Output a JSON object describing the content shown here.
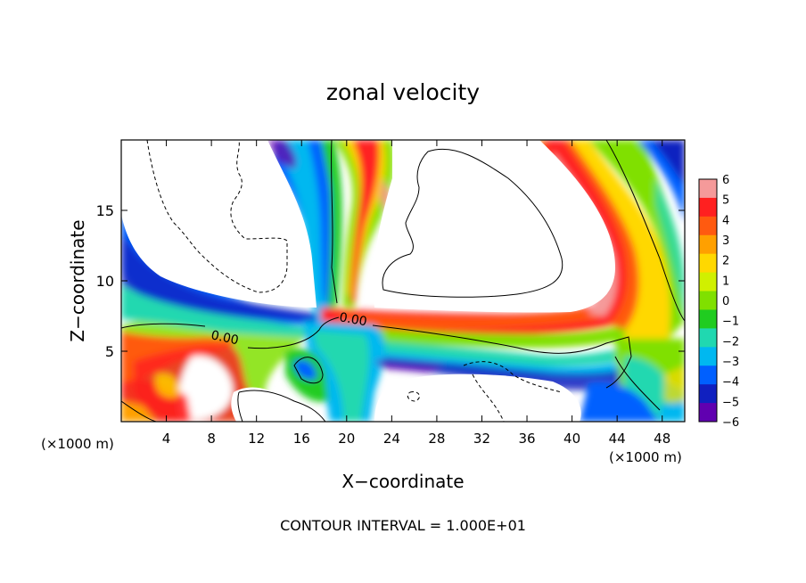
{
  "chart_data": {
    "type": "heatmap",
    "title": "zonal velocity",
    "xlabel": "X−coordinate",
    "ylabel": "Z−coordinate",
    "x_unit_left": "(×1000 m)",
    "x_unit_right": "(×1000 m)",
    "xlim": [
      0,
      50
    ],
    "ylim": [
      0,
      20
    ],
    "x_ticks": [
      4,
      8,
      12,
      16,
      20,
      24,
      28,
      32,
      36,
      40,
      44,
      48
    ],
    "y_ticks": [
      5,
      10,
      15
    ],
    "colorbar": {
      "ticks": [
        6,
        5,
        4,
        3,
        2,
        1,
        0,
        -1,
        -2,
        -3,
        -4,
        -5,
        -6
      ],
      "colors": [
        "#f59a9a",
        "#ff2020",
        "#ff5a10",
        "#ffa000",
        "#ffd800",
        "#d0f000",
        "#80e000",
        "#20cc20",
        "#20d8b0",
        "#00b8f0",
        "#0060ff",
        "#1020c0",
        "#6000b0"
      ]
    },
    "contour_labels": [
      {
        "text": "0.00",
        "x": 9.2,
        "y": 6.0
      },
      {
        "text": "0.00",
        "x": 20.8,
        "y": 7.0
      }
    ],
    "footer": "CONTOUR INTERVAL = 1.000E+01",
    "grid": false
  }
}
